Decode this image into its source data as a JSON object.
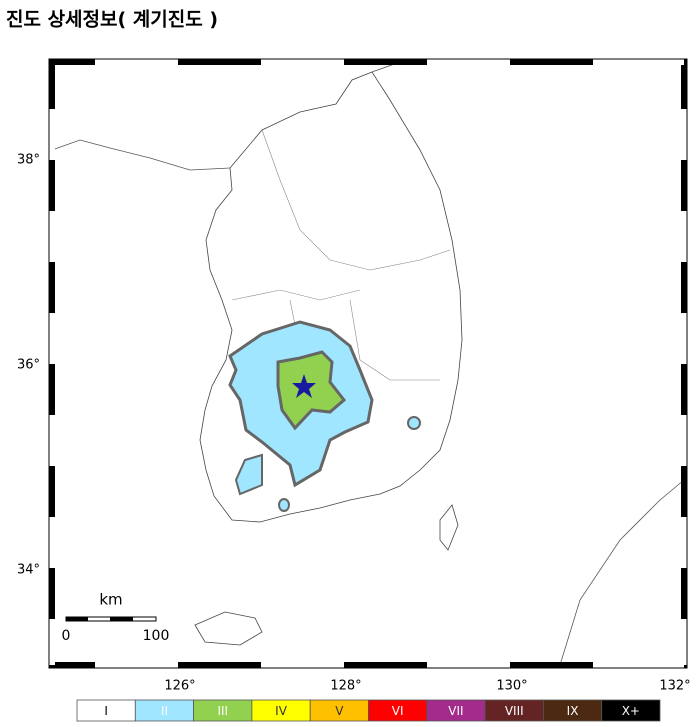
{
  "header": {
    "title": "진도 상세정보( 계기진도 )"
  },
  "map": {
    "lat_labels": [
      "38°",
      "36°",
      "34°"
    ],
    "lon_labels": [
      "126°",
      "128°",
      "130°",
      "132°"
    ],
    "scale_bar": {
      "unit": "km",
      "start": "0",
      "end": "100"
    }
  },
  "legend": [
    {
      "label": "I",
      "color": "#ffffff",
      "text_color": "#000000"
    },
    {
      "label": "II",
      "color": "#a0e6ff",
      "text_color": "#ffffff"
    },
    {
      "label": "III",
      "color": "#92d050",
      "text_color": "#ffffff"
    },
    {
      "label": "IV",
      "color": "#ffff00",
      "text_color": "#333333"
    },
    {
      "label": "V",
      "color": "#ffc000",
      "text_color": "#333333"
    },
    {
      "label": "VI",
      "color": "#ff0000",
      "text_color": "#ffffff"
    },
    {
      "label": "VII",
      "color": "#a32b8c",
      "text_color": "#ffffff"
    },
    {
      "label": "VIII",
      "color": "#632423",
      "text_color": "#ffffff"
    },
    {
      "label": "IX",
      "color": "#4c2a12",
      "text_color": "#ffffff"
    },
    {
      "label": "X+",
      "color": "#000000",
      "text_color": "#ffffff"
    }
  ]
}
